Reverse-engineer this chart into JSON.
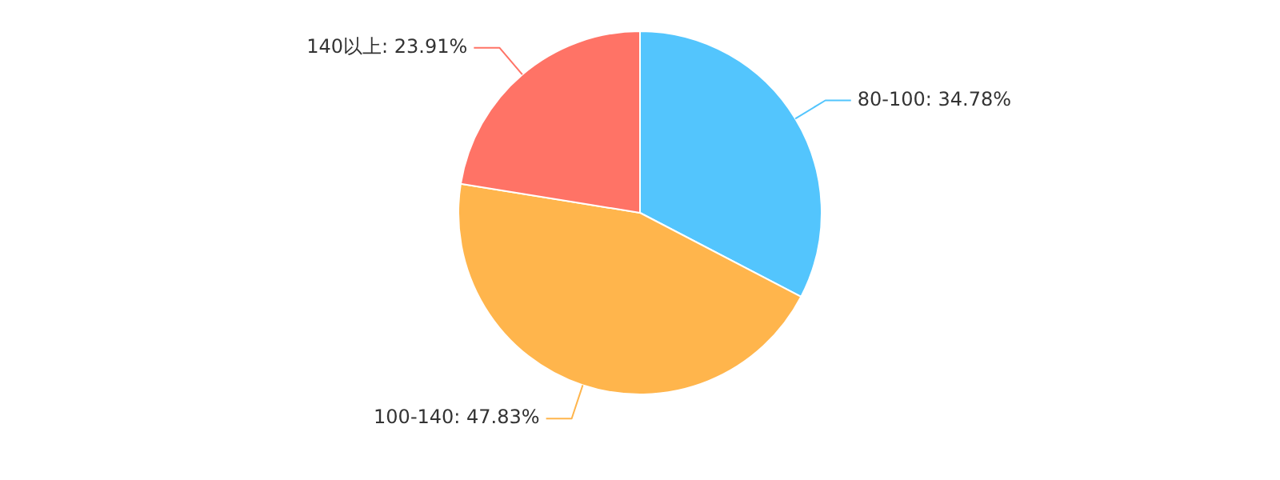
{
  "chart_data": {
    "type": "pie",
    "categories": [
      "80-100",
      "100-140",
      "140以上"
    ],
    "values": [
      34.78,
      47.83,
      23.91
    ],
    "value_labels": [
      "34.78%",
      "47.83%",
      "23.91%"
    ],
    "colors": [
      "#53c5fd",
      "#ffb54c",
      "#ff7366"
    ],
    "legend": false
  }
}
